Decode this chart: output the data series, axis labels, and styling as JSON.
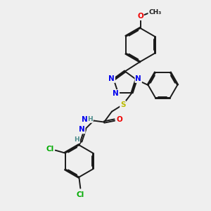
{
  "bg_color": "#efefef",
  "bond_color": "#1a1a1a",
  "atom_colors": {
    "N": "#0000ee",
    "O": "#ee0000",
    "S": "#bbbb00",
    "Cl": "#00aa00",
    "C": "#1a1a1a",
    "H": "#4a8a8a"
  },
  "figsize": [
    3.0,
    3.0
  ],
  "dpi": 100,
  "lw": 1.4,
  "fs": 7.5
}
